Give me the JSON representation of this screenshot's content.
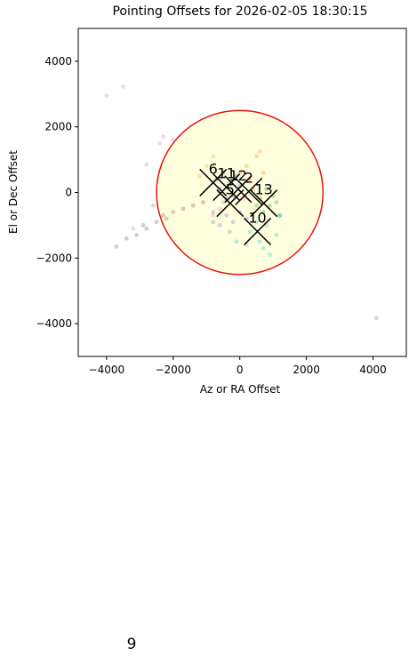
{
  "chart_data": {
    "type": "scatter",
    "title": "Pointing Offsets for 2026-02-05 18:30:15",
    "x_label": "Az or RA Offset",
    "y_label": "El or Dec Offset",
    "xlim": [
      -4850,
      5000
    ],
    "ylim": [
      -5000,
      5000
    ],
    "xticks": [
      {
        "value": -4000,
        "label": "−4000"
      },
      {
        "value": -2000,
        "label": "−2000"
      },
      0,
      2000,
      4000
    ],
    "yticks": [
      {
        "value": -4000,
        "label": "−4000"
      },
      {
        "value": -2000,
        "label": "−2000"
      },
      0,
      2000,
      4000
    ],
    "circle": {
      "center": [
        0,
        0
      ],
      "radius": 2500,
      "fill": "#ffffe0",
      "edge": "#e8100c"
    },
    "series": [
      {
        "color": "#8c564b",
        "x": [
          -3400,
          -3100,
          -2800,
          -2500,
          -2200,
          -2000,
          -1700,
          -1400,
          -1100,
          -3700,
          -2900,
          -2300
        ],
        "y": [
          -1400,
          -1300,
          -1100,
          -900,
          -800,
          -600,
          -500,
          -400,
          -300,
          -1650,
          -1000,
          -700
        ]
      },
      {
        "color": "#e377c2",
        "x": [
          -4000,
          -3500,
          -2800,
          -2400,
          -2300,
          -2000,
          -600,
          -800,
          -500,
          -3200
        ],
        "y": [
          2950,
          3230,
          850,
          1500,
          1700,
          1600,
          -500,
          -700,
          -300,
          -1100
        ]
      },
      {
        "color": "#7f7f7f",
        "x": [
          4100,
          -2600,
          -800
        ],
        "y": [
          -3830,
          -400,
          -900
        ]
      },
      {
        "color": "#1f77b4",
        "x": [
          -300,
          -500,
          -200,
          -600,
          -100,
          -400,
          0,
          -700
        ],
        "y": [
          300,
          600,
          -100,
          100,
          500,
          -200,
          200,
          400
        ]
      },
      {
        "color": "#ff7f0e",
        "x": [
          200,
          500,
          300,
          100,
          600,
          0,
          400,
          700
        ],
        "y": [
          800,
          1100,
          400,
          -200,
          1250,
          600,
          100,
          600
        ]
      },
      {
        "color": "#2ca02c",
        "x": [
          600,
          900,
          1100,
          700,
          800,
          1200,
          500,
          1000
        ],
        "y": [
          -200,
          -400,
          -300,
          -600,
          100,
          -700,
          -400,
          -100
        ]
      },
      {
        "color": "#9467bd",
        "x": [
          -400,
          -200,
          -600,
          0,
          -300,
          200,
          -800
        ],
        "y": [
          -700,
          -900,
          -1000,
          -600,
          -1200,
          -800,
          -600
        ]
      },
      {
        "color": "#17becf",
        "x": [
          300,
          600,
          800,
          200,
          900,
          500,
          1100,
          -100,
          700,
          1200
        ],
        "y": [
          -1200,
          -1500,
          -1000,
          -1600,
          -1900,
          -900,
          -1300,
          -1500,
          -1700,
          -700
        ]
      },
      {
        "color": "#bcbd22",
        "x": [
          -800,
          -1000,
          -1200
        ],
        "y": [
          1100,
          800,
          500
        ]
      }
    ],
    "markers": {
      "labels": [
        "6",
        "11",
        "12",
        "2",
        "5",
        "13",
        "10"
      ],
      "x": [
        -800,
        -400,
        -50,
        270,
        -290,
        720,
        530
      ],
      "y": [
        300,
        160,
        100,
        30,
        -330,
        -330,
        -1190
      ]
    }
  },
  "footer": "9"
}
